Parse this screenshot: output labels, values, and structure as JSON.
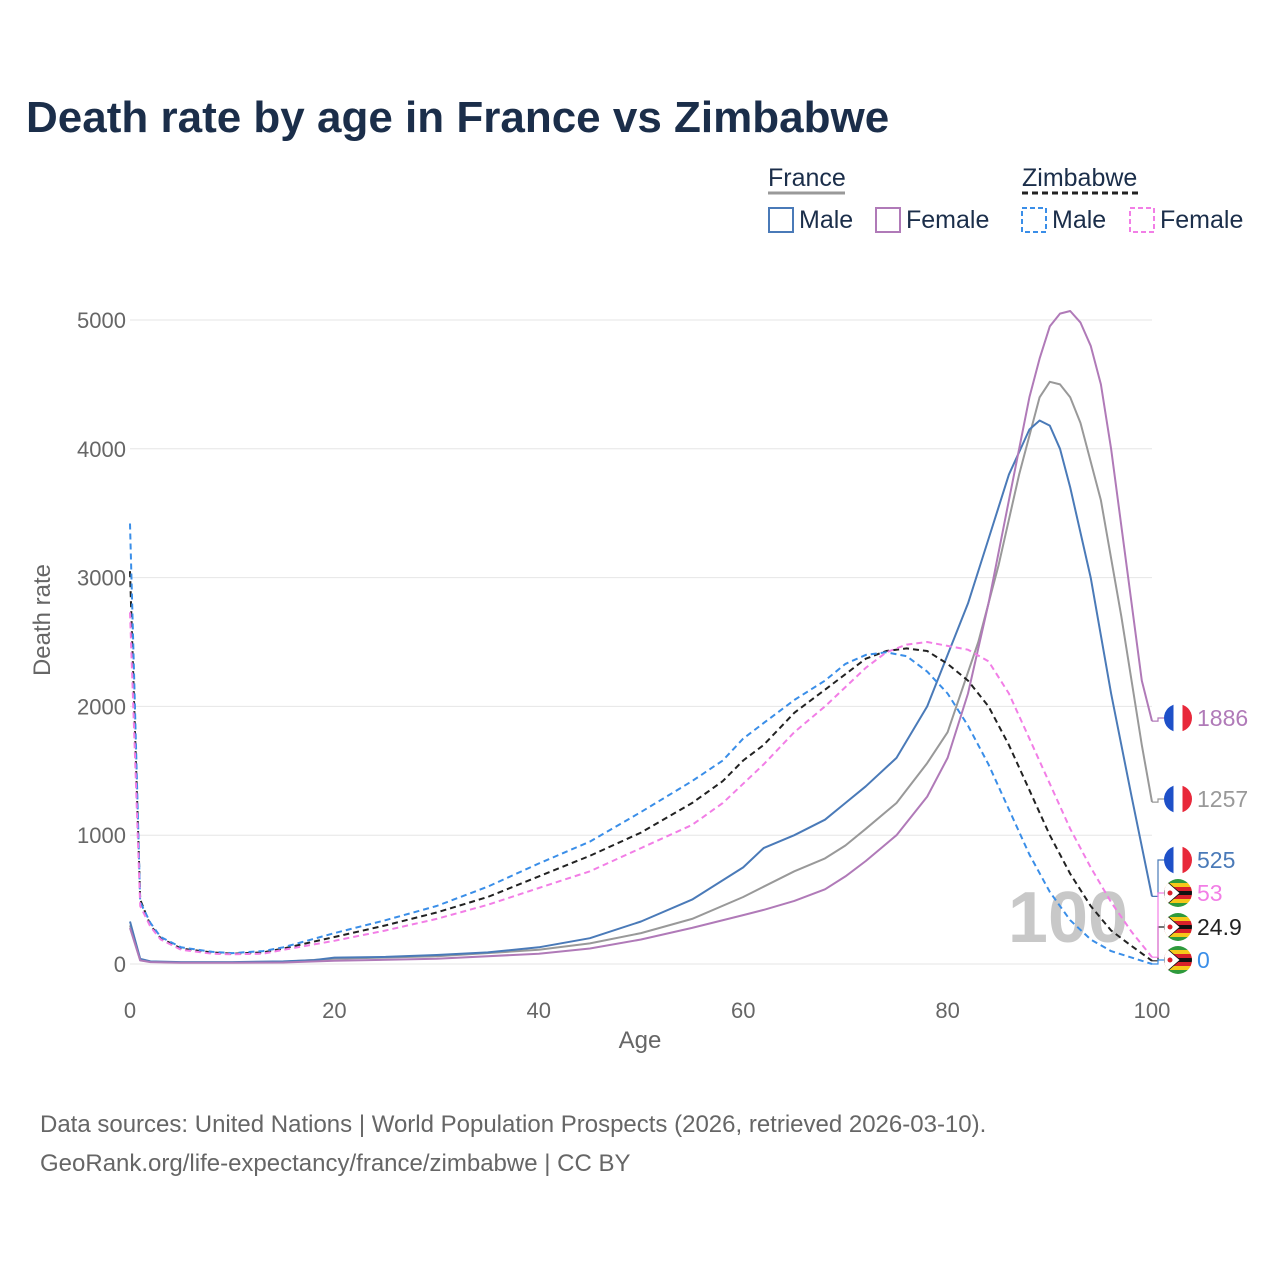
{
  "colors": {
    "france_male": "#4a7ab8",
    "france_female": "#b07ab8",
    "france_total": "#999999",
    "zim_male": "#3a8ee8",
    "zim_female": "#f27ee6",
    "zim_total": "#222222",
    "grid": "#e6e6e6",
    "title": "#1b2e4a",
    "muted": "#666666"
  },
  "chart_data": {
    "type": "line",
    "title": "Death rate by age in France vs Zimbabwe",
    "xlabel": "Age",
    "ylabel": "Death rate",
    "xlim": [
      0,
      100
    ],
    "ylim": [
      0,
      5000
    ],
    "x_ticks": [
      0,
      20,
      40,
      60,
      80,
      100
    ],
    "y_ticks": [
      0,
      1000,
      2000,
      3000,
      4000,
      5000
    ],
    "grid": true,
    "legend": {
      "position": "top-right",
      "groups": [
        {
          "name": "France",
          "items": [
            "Male",
            "Female"
          ]
        },
        {
          "name": "Zimbabwe",
          "items": [
            "Male",
            "Female"
          ]
        }
      ]
    },
    "annotation": "100",
    "series": [
      {
        "name": "France total",
        "country": "France",
        "sex": "Total",
        "style": "solid",
        "color_key": "france_total",
        "end_label": "1257",
        "points": [
          [
            0,
            300
          ],
          [
            1,
            30
          ],
          [
            2,
            18
          ],
          [
            5,
            12
          ],
          [
            10,
            12
          ],
          [
            15,
            18
          ],
          [
            20,
            40
          ],
          [
            30,
            60
          ],
          [
            40,
            110
          ],
          [
            45,
            160
          ],
          [
            50,
            240
          ],
          [
            55,
            350
          ],
          [
            60,
            520
          ],
          [
            62,
            600
          ],
          [
            65,
            720
          ],
          [
            68,
            820
          ],
          [
            70,
            920
          ],
          [
            72,
            1050
          ],
          [
            75,
            1250
          ],
          [
            78,
            1560
          ],
          [
            80,
            1800
          ],
          [
            83,
            2500
          ],
          [
            85,
            3100
          ],
          [
            87,
            3800
          ],
          [
            89,
            4400
          ],
          [
            90,
            4520
          ],
          [
            91,
            4500
          ],
          [
            92,
            4400
          ],
          [
            93,
            4200
          ],
          [
            95,
            3600
          ],
          [
            97,
            2700
          ],
          [
            99,
            1700
          ],
          [
            100,
            1257
          ]
        ]
      },
      {
        "name": "France male",
        "country": "France",
        "sex": "Male",
        "style": "solid",
        "color_key": "france_male",
        "end_label": "525",
        "points": [
          [
            0,
            330
          ],
          [
            1,
            40
          ],
          [
            2,
            20
          ],
          [
            5,
            15
          ],
          [
            10,
            15
          ],
          [
            15,
            20
          ],
          [
            18,
            30
          ],
          [
            20,
            50
          ],
          [
            25,
            55
          ],
          [
            30,
            70
          ],
          [
            35,
            90
          ],
          [
            40,
            130
          ],
          [
            45,
            200
          ],
          [
            50,
            330
          ],
          [
            55,
            500
          ],
          [
            60,
            750
          ],
          [
            62,
            900
          ],
          [
            65,
            1000
          ],
          [
            68,
            1120
          ],
          [
            70,
            1250
          ],
          [
            72,
            1380
          ],
          [
            75,
            1600
          ],
          [
            78,
            2000
          ],
          [
            80,
            2400
          ],
          [
            82,
            2800
          ],
          [
            84,
            3300
          ],
          [
            86,
            3800
          ],
          [
            88,
            4150
          ],
          [
            89,
            4220
          ],
          [
            90,
            4180
          ],
          [
            91,
            4000
          ],
          [
            92,
            3700
          ],
          [
            94,
            3000
          ],
          [
            96,
            2100
          ],
          [
            98,
            1300
          ],
          [
            100,
            525
          ]
        ]
      },
      {
        "name": "France female",
        "country": "France",
        "sex": "Female",
        "style": "solid",
        "color_key": "france_female",
        "end_label": "1886",
        "points": [
          [
            0,
            280
          ],
          [
            1,
            28
          ],
          [
            2,
            15
          ],
          [
            5,
            10
          ],
          [
            10,
            10
          ],
          [
            15,
            12
          ],
          [
            20,
            25
          ],
          [
            30,
            40
          ],
          [
            40,
            80
          ],
          [
            45,
            120
          ],
          [
            50,
            190
          ],
          [
            55,
            280
          ],
          [
            60,
            380
          ],
          [
            62,
            420
          ],
          [
            65,
            490
          ],
          [
            68,
            580
          ],
          [
            70,
            680
          ],
          [
            72,
            800
          ],
          [
            75,
            1000
          ],
          [
            78,
            1300
          ],
          [
            80,
            1600
          ],
          [
            82,
            2100
          ],
          [
            84,
            2800
          ],
          [
            86,
            3600
          ],
          [
            88,
            4400
          ],
          [
            89,
            4700
          ],
          [
            90,
            4950
          ],
          [
            91,
            5050
          ],
          [
            92,
            5070
          ],
          [
            93,
            4980
          ],
          [
            94,
            4800
          ],
          [
            95,
            4500
          ],
          [
            96,
            4000
          ],
          [
            98,
            2800
          ],
          [
            99,
            2200
          ],
          [
            100,
            1886
          ]
        ]
      },
      {
        "name": "Zimbabwe total",
        "country": "Zimbabwe",
        "sex": "Total",
        "style": "dashed",
        "color_key": "zim_total",
        "end_label": "24.9",
        "points": [
          [
            0,
            3050
          ],
          [
            1,
            500
          ],
          [
            2,
            300
          ],
          [
            3,
            200
          ],
          [
            5,
            120
          ],
          [
            8,
            90
          ],
          [
            10,
            80
          ],
          [
            13,
            90
          ],
          [
            15,
            120
          ],
          [
            20,
            210
          ],
          [
            25,
            300
          ],
          [
            30,
            400
          ],
          [
            35,
            520
          ],
          [
            40,
            680
          ],
          [
            45,
            840
          ],
          [
            50,
            1020
          ],
          [
            55,
            1250
          ],
          [
            58,
            1420
          ],
          [
            60,
            1580
          ],
          [
            62,
            1700
          ],
          [
            65,
            1950
          ],
          [
            68,
            2130
          ],
          [
            70,
            2250
          ],
          [
            72,
            2370
          ],
          [
            74,
            2430
          ],
          [
            76,
            2450
          ],
          [
            78,
            2430
          ],
          [
            80,
            2330
          ],
          [
            82,
            2200
          ],
          [
            84,
            2000
          ],
          [
            86,
            1700
          ],
          [
            88,
            1350
          ],
          [
            90,
            1000
          ],
          [
            92,
            700
          ],
          [
            94,
            450
          ],
          [
            96,
            260
          ],
          [
            98,
            140
          ],
          [
            100,
            25
          ]
        ]
      },
      {
        "name": "Zimbabwe male",
        "country": "Zimbabwe",
        "sex": "Male",
        "style": "dashed",
        "color_key": "zim_male",
        "end_label": "0",
        "points": [
          [
            0,
            3420
          ],
          [
            1,
            480
          ],
          [
            2,
            320
          ],
          [
            3,
            210
          ],
          [
            5,
            130
          ],
          [
            8,
            95
          ],
          [
            10,
            85
          ],
          [
            13,
            100
          ],
          [
            15,
            130
          ],
          [
            20,
            240
          ],
          [
            25,
            340
          ],
          [
            30,
            450
          ],
          [
            35,
            600
          ],
          [
            40,
            780
          ],
          [
            45,
            950
          ],
          [
            50,
            1180
          ],
          [
            55,
            1420
          ],
          [
            58,
            1580
          ],
          [
            60,
            1750
          ],
          [
            62,
            1870
          ],
          [
            65,
            2050
          ],
          [
            68,
            2200
          ],
          [
            70,
            2330
          ],
          [
            72,
            2400
          ],
          [
            74,
            2420
          ],
          [
            76,
            2390
          ],
          [
            78,
            2270
          ],
          [
            80,
            2100
          ],
          [
            82,
            1850
          ],
          [
            84,
            1550
          ],
          [
            86,
            1200
          ],
          [
            88,
            850
          ],
          [
            90,
            560
          ],
          [
            92,
            340
          ],
          [
            94,
            190
          ],
          [
            96,
            100
          ],
          [
            98,
            50
          ],
          [
            100,
            0
          ]
        ]
      },
      {
        "name": "Zimbabwe female",
        "country": "Zimbabwe",
        "sex": "Female",
        "style": "dashed",
        "color_key": "zim_female",
        "end_label": "53",
        "points": [
          [
            0,
            2730
          ],
          [
            1,
            450
          ],
          [
            2,
            290
          ],
          [
            3,
            190
          ],
          [
            5,
            110
          ],
          [
            8,
            80
          ],
          [
            10,
            75
          ],
          [
            13,
            80
          ],
          [
            15,
            110
          ],
          [
            20,
            180
          ],
          [
            25,
            260
          ],
          [
            30,
            350
          ],
          [
            35,
            460
          ],
          [
            40,
            590
          ],
          [
            45,
            720
          ],
          [
            50,
            900
          ],
          [
            55,
            1080
          ],
          [
            58,
            1250
          ],
          [
            60,
            1400
          ],
          [
            62,
            1550
          ],
          [
            65,
            1800
          ],
          [
            68,
            2000
          ],
          [
            70,
            2150
          ],
          [
            72,
            2300
          ],
          [
            74,
            2420
          ],
          [
            76,
            2480
          ],
          [
            78,
            2500
          ],
          [
            80,
            2470
          ],
          [
            82,
            2440
          ],
          [
            84,
            2350
          ],
          [
            86,
            2100
          ],
          [
            88,
            1750
          ],
          [
            90,
            1400
          ],
          [
            92,
            1050
          ],
          [
            94,
            750
          ],
          [
            96,
            480
          ],
          [
            98,
            250
          ],
          [
            100,
            53
          ]
        ]
      }
    ]
  },
  "source": {
    "line1": "Data sources: United Nations | World Population Prospects (2026, retrieved 2026-03-10).",
    "line2": "GeoRank.org/life-expectancy/france/zimbabwe | CC BY"
  }
}
